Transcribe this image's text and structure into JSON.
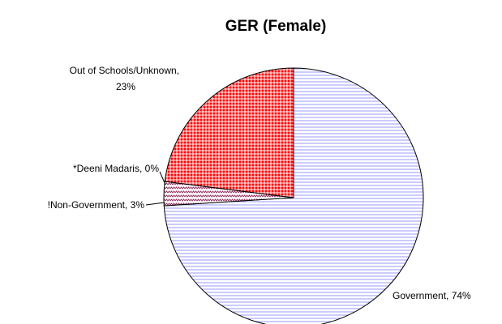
{
  "chart_data": {
    "type": "pie",
    "title": "GER (Female)",
    "categories": [
      "Government",
      "!Non-Government",
      "*Deeni Madaris",
      "Out of Schools/Unknown"
    ],
    "values": [
      74,
      3,
      0,
      23
    ],
    "value_labels": [
      "74%",
      "3%",
      "0%",
      "23%"
    ],
    "label_separator": ", ",
    "colors": [
      "#9999ff",
      "#993366",
      "#ffffff",
      "#ff0000"
    ],
    "patterns": [
      "horizontal",
      "wave",
      "none",
      "crosshatch"
    ]
  }
}
